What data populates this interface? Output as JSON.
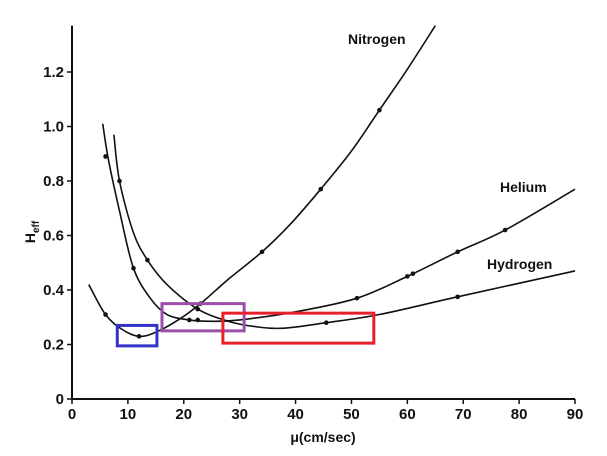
{
  "chart_data": {
    "type": "line",
    "title": "",
    "xlabel": "μ(cm/sec)",
    "ylabel": "H",
    "ylabel_sub": "eff",
    "xlim": [
      0,
      90
    ],
    "ylim": [
      0,
      1.37
    ],
    "xticks": [
      "0",
      "10",
      "20",
      "30",
      "40",
      "50",
      "60",
      "70",
      "80",
      "90"
    ],
    "yticks": [
      "0",
      "0.2",
      "0.4",
      "0.6",
      "0.8",
      "1.0",
      "1.2"
    ],
    "grid": false,
    "series": [
      {
        "name": "Nitrogen",
        "color": "#111111",
        "curve": [
          [
            3,
            0.42
          ],
          [
            6,
            0.31
          ],
          [
            9,
            0.255
          ],
          [
            12,
            0.23
          ],
          [
            15,
            0.245
          ],
          [
            19,
            0.29
          ],
          [
            23,
            0.35
          ],
          [
            28,
            0.44
          ],
          [
            34,
            0.54
          ],
          [
            39,
            0.64
          ],
          [
            44.5,
            0.77
          ],
          [
            50,
            0.91
          ],
          [
            55,
            1.06
          ],
          [
            60,
            1.21
          ],
          [
            65,
            1.37
          ]
        ],
        "points": [
          [
            6,
            0.31
          ],
          [
            12,
            0.23
          ],
          [
            23,
            0.35
          ],
          [
            34,
            0.54
          ],
          [
            44.5,
            0.77
          ],
          [
            55,
            1.06
          ]
        ]
      },
      {
        "name": "Helium",
        "color": "#111111",
        "curve": [
          [
            5.5,
            1.01
          ],
          [
            6.5,
            0.88
          ],
          [
            8.5,
            0.69
          ],
          [
            11,
            0.48
          ],
          [
            14,
            0.37
          ],
          [
            17,
            0.31
          ],
          [
            21,
            0.29
          ],
          [
            25,
            0.285
          ],
          [
            30,
            0.29
          ],
          [
            40,
            0.32
          ],
          [
            51,
            0.37
          ],
          [
            60,
            0.45
          ],
          [
            69,
            0.54
          ],
          [
            77.5,
            0.62
          ],
          [
            90,
            0.77
          ]
        ],
        "points": [
          [
            6,
            0.89
          ],
          [
            11,
            0.48
          ],
          [
            21,
            0.29
          ],
          [
            22.5,
            0.29
          ],
          [
            51,
            0.37
          ],
          [
            60,
            0.45
          ],
          [
            61,
            0.46
          ],
          [
            69,
            0.54
          ],
          [
            77.5,
            0.62
          ]
        ]
      },
      {
        "name": "Hydrogen",
        "color": "#111111",
        "curve": [
          [
            7.5,
            0.97
          ],
          [
            8.5,
            0.8
          ],
          [
            11,
            0.61
          ],
          [
            13.5,
            0.51
          ],
          [
            17,
            0.42
          ],
          [
            22.5,
            0.33
          ],
          [
            28,
            0.285
          ],
          [
            33,
            0.265
          ],
          [
            38,
            0.26
          ],
          [
            45.5,
            0.28
          ],
          [
            55,
            0.31
          ],
          [
            69,
            0.375
          ],
          [
            90,
            0.47
          ]
        ],
        "points": [
          [
            8.5,
            0.8
          ],
          [
            13.5,
            0.51
          ],
          [
            22.5,
            0.33
          ],
          [
            45.5,
            0.28
          ],
          [
            69,
            0.375
          ]
        ]
      }
    ],
    "annotations": [
      {
        "shape": "rect",
        "color": "#3333cc",
        "x": [
          8.1,
          15.2
        ],
        "y": [
          0.195,
          0.27
        ]
      },
      {
        "shape": "rect",
        "color": "#9b4fa8",
        "x": [
          16.1,
          30.8
        ],
        "y": [
          0.25,
          0.35
        ]
      },
      {
        "shape": "rect",
        "color": "#e8202a",
        "x": [
          27,
          54
        ],
        "y": [
          0.205,
          0.315
        ]
      }
    ]
  }
}
